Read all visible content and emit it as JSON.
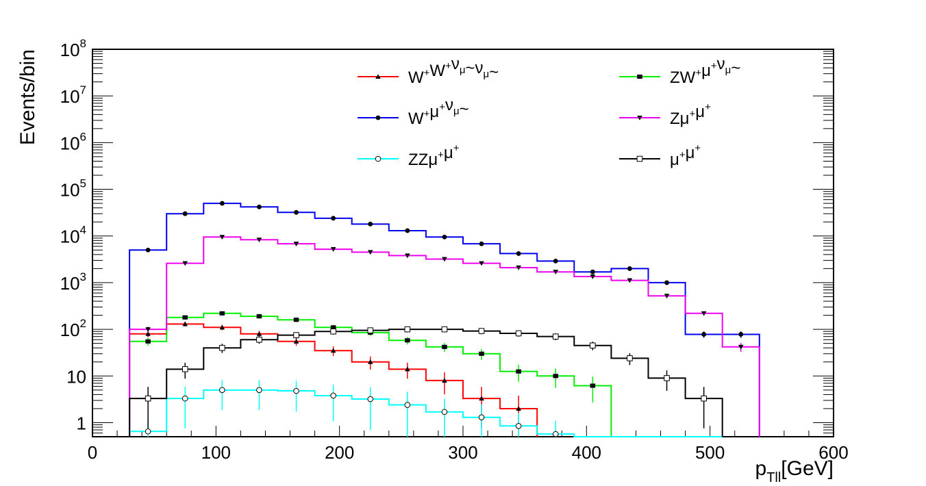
{
  "chart_data": {
    "type": "step-histogram",
    "xlabel": {
      "main": "p",
      "sub": "Tll",
      "rest": "[GeV]"
    },
    "ylabel": "Events/bin",
    "xlim": [
      0,
      600
    ],
    "ylim": [
      0.5,
      100000000
    ],
    "yscale": "log",
    "x_ticks": [
      "0",
      "100",
      "200",
      "300",
      "400",
      "500",
      "600"
    ],
    "y_ticks": [
      {
        "value": 1,
        "base": "1",
        "exp": ""
      },
      {
        "value": 10,
        "base": "10",
        "exp": ""
      },
      {
        "value": 100,
        "base": "10",
        "exp": "2"
      },
      {
        "value": 1000,
        "base": "10",
        "exp": "3"
      },
      {
        "value": 10000,
        "base": "10",
        "exp": "4"
      },
      {
        "value": 100000,
        "base": "10",
        "exp": "5"
      },
      {
        "value": 1000000,
        "base": "10",
        "exp": "6"
      },
      {
        "value": 10000000,
        "base": "10",
        "exp": "7"
      },
      {
        "value": 100000000,
        "base": "10",
        "exp": "8"
      }
    ],
    "bin_width": 30,
    "bin_start": 30,
    "legend_position": "top-right",
    "series": [
      {
        "name": "W+W+νμ~νμ~",
        "color": "#ff0000",
        "marker": "triangle-up",
        "label": [
          [
            "W",
            ""
          ],
          [
            "",
            "+"
          ],
          [
            "W",
            ""
          ],
          [
            "",
            "+"
          ],
          [
            "ν",
            ""
          ],
          [
            "μ",
            "sub"
          ],
          [
            "~",
            ""
          ],
          [
            "ν",
            ""
          ],
          [
            "μ",
            "sub"
          ],
          [
            "~",
            ""
          ]
        ],
        "values": [
          80,
          130,
          110,
          80,
          55,
          35,
          20,
          14,
          8,
          3.3,
          2.0
        ]
      },
      {
        "name": "ZW+μ+νμ~",
        "color": "#00ee00",
        "marker": "square-filled",
        "label": [
          [
            "ZW",
            ""
          ],
          [
            "",
            "+"
          ],
          [
            "μ",
            ""
          ],
          [
            "",
            "+"
          ],
          [
            "ν",
            ""
          ],
          [
            "μ",
            "sub"
          ],
          [
            "~",
            ""
          ]
        ],
        "values": [
          55,
          180,
          220,
          190,
          160,
          110,
          85,
          58,
          42,
          30,
          12.5,
          10,
          6.2
        ]
      },
      {
        "name": "W+μ+νμ~",
        "color": "#0000ee",
        "marker": "circle-filled",
        "label": [
          [
            "W",
            ""
          ],
          [
            "",
            "+"
          ],
          [
            "μ",
            ""
          ],
          [
            "",
            "+"
          ],
          [
            "ν",
            ""
          ],
          [
            "μ",
            "sub"
          ],
          [
            "~",
            ""
          ]
        ],
        "values": [
          5000,
          30000,
          50000,
          42000,
          32000,
          24000,
          18000,
          13000,
          9500,
          6800,
          4200,
          2900,
          1700,
          2000,
          1000,
          78,
          78
        ]
      },
      {
        "name": "Zμ+μ+",
        "color": "#ee00ee",
        "marker": "triangle-down",
        "label": [
          [
            "Zμ",
            ""
          ],
          [
            "",
            "+"
          ],
          [
            "μ",
            ""
          ],
          [
            "",
            "+"
          ]
        ],
        "values": [
          100,
          2600,
          9500,
          8300,
          6800,
          5200,
          4500,
          3800,
          3200,
          2600,
          2100,
          1700,
          1350,
          1120,
          520,
          220,
          42
        ]
      },
      {
        "name": "ZZμ+μ+",
        "color": "#00ffff",
        "marker": "circle-open",
        "label": [
          [
            "ZZμ",
            ""
          ],
          [
            "",
            "+"
          ],
          [
            "μ",
            ""
          ],
          [
            "",
            "+"
          ]
        ],
        "values": [
          0.65,
          3.3,
          5.0,
          5.0,
          4.8,
          3.8,
          3.2,
          2.4,
          1.7,
          1.3,
          0.85,
          0.57,
          0.5,
          0.5,
          0.5,
          0.5
        ]
      },
      {
        "name": "μ+μ+",
        "color": "#000000",
        "marker": "square-open",
        "label": [
          [
            "μ",
            ""
          ],
          [
            "",
            "+"
          ],
          [
            "μ",
            ""
          ],
          [
            "",
            "+"
          ]
        ],
        "values": [
          3.3,
          14,
          40,
          60,
          75,
          90,
          95,
          100,
          100,
          92,
          82,
          70,
          45,
          24,
          9,
          3.3
        ]
      }
    ]
  }
}
